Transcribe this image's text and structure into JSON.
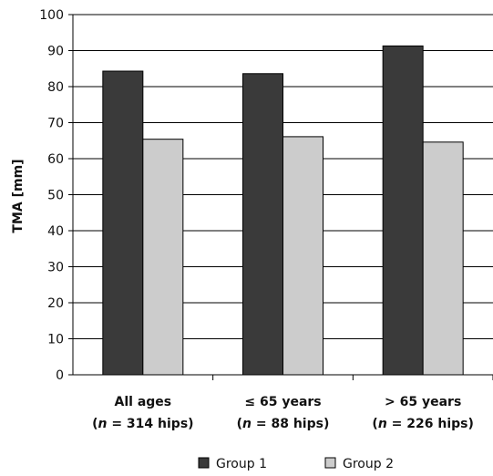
{
  "chart_data": {
    "type": "bar",
    "ylabel": "TMA [mm]",
    "xlabel": "",
    "ylim": [
      0,
      100
    ],
    "ytick_step": 10,
    "grid": true,
    "legend_position": "bottom",
    "categories": [
      {
        "label": "All ages",
        "sublabel": {
          "pre": "(",
          "n": "n",
          "post": " = 314 hips)"
        }
      },
      {
        "label": "≤ 65 years",
        "sublabel": {
          "pre": "(",
          "n": "n",
          "post": " = 88 hips)"
        }
      },
      {
        "label": "> 65 years",
        "sublabel": {
          "pre": "(",
          "n": "n",
          "post": " = 226 hips)"
        }
      }
    ],
    "series": [
      {
        "name": "Group 1",
        "color": "#3a3a3a",
        "values": [
          84.3,
          83.6,
          91.3
        ]
      },
      {
        "name": "Group 2",
        "color": "#cccccc",
        "values": [
          65.4,
          66.1,
          64.6
        ]
      }
    ]
  }
}
